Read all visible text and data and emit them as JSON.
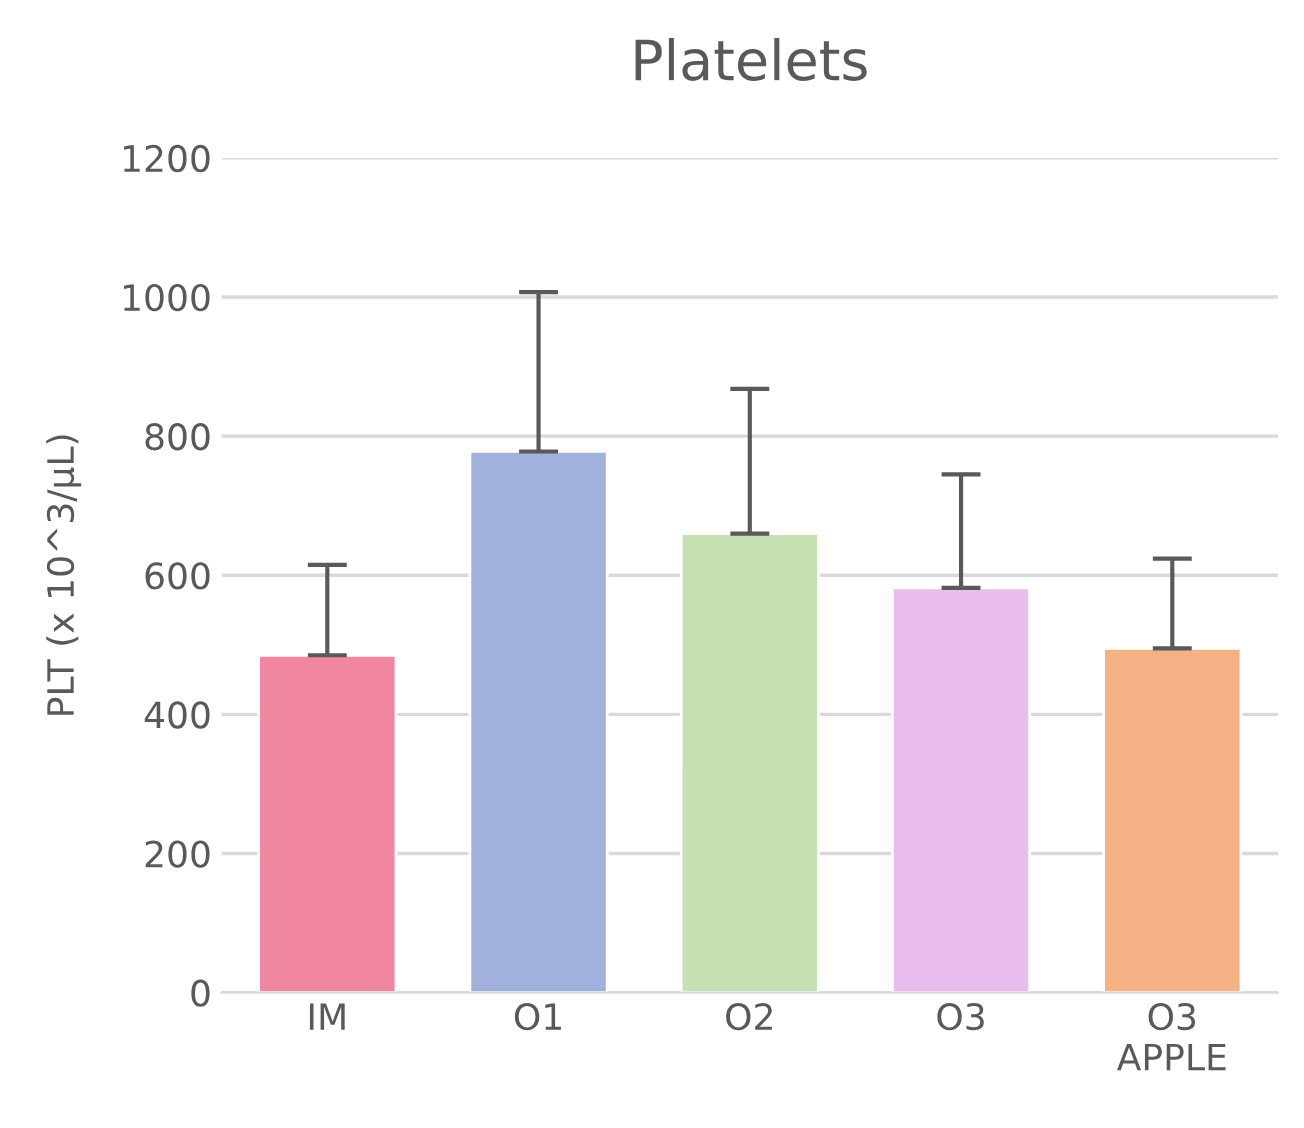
{
  "chart_data": {
    "type": "bar",
    "title": "Platelets",
    "ylabel": "PLT (x 10^3/μL)",
    "categories": [
      "IM",
      "O1",
      "O2",
      "O3",
      "O3\nAPPLE"
    ],
    "values": [
      485,
      778,
      660,
      582,
      495
    ],
    "colors": [
      "#f086a0",
      "#a2b1db",
      "#c5e0b3",
      "#e8bcec",
      "#f4b183"
    ],
    "errors": [
      [
        485,
        615
      ],
      [
        778,
        1007
      ],
      [
        660,
        868
      ],
      [
        582,
        745
      ],
      [
        495,
        624
      ]
    ],
    "ylim": [
      0,
      1200
    ],
    "yticks": [
      0,
      200,
      400,
      600,
      800,
      1000,
      1200
    ],
    "grid": "y"
  }
}
